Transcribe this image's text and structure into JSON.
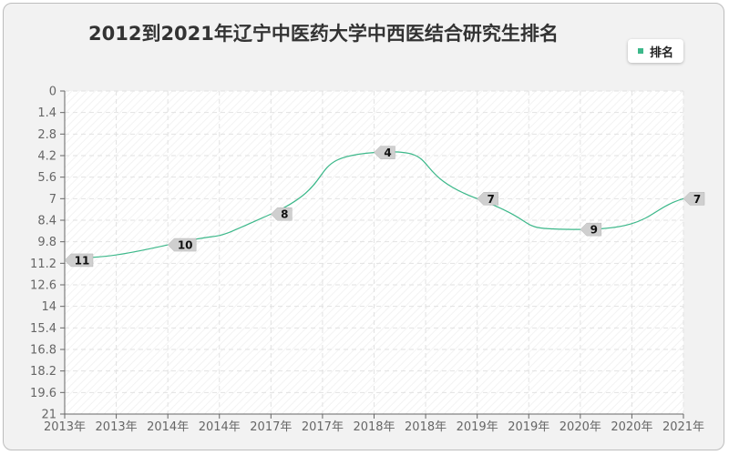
{
  "title": "2012到2021年辽宁中医药大学中西医结合研究生排名",
  "legend": {
    "label": "排名",
    "color": "#3cb88a"
  },
  "chart_data": {
    "type": "line",
    "title": "2012到2021年辽宁中医药大学中西医结合研究生排名",
    "x_tick_labels": [
      "2013年",
      "2013年",
      "2014年",
      "2014年",
      "2017年",
      "2017年",
      "2018年",
      "2018年",
      "2019年",
      "2019年",
      "2020年",
      "2020年",
      "2021年"
    ],
    "y_ticks": [
      "0",
      "1.4",
      "2.8",
      "4.2",
      "5.6",
      "7",
      "8.4",
      "9.8",
      "11.2",
      "12.6",
      "14",
      "15.4",
      "16.8",
      "18.2",
      "19.6",
      "21"
    ],
    "ylim": [
      0,
      21
    ],
    "y_inverted": true,
    "grid": true,
    "legend_position": "top-right",
    "series": [
      {
        "name": "排名",
        "color": "#3cb88a",
        "points": [
          {
            "x": "2013年",
            "y": 11
          },
          {
            "x": "2014年",
            "y": 10
          },
          {
            "x": "2017年",
            "y": 8
          },
          {
            "x": "2018年",
            "y": 4
          },
          {
            "x": "2019年",
            "y": 7
          },
          {
            "x": "2020年",
            "y": 9
          },
          {
            "x": "2021年",
            "y": 7
          }
        ]
      }
    ]
  }
}
